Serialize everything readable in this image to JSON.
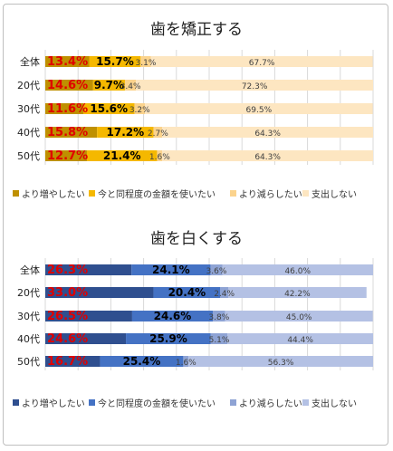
{
  "chart_data": [
    {
      "type": "bar",
      "orientation": "horizontal",
      "stacked": true,
      "title": "歯を矯正する",
      "categories": [
        "全体",
        "20代",
        "30代",
        "40代",
        "50代"
      ],
      "value_labels": {
        "series0": [
          "13.4%",
          "14.6%",
          "11.6%",
          "15.8%",
          "12.7%"
        ],
        "series1": [
          "15.7%",
          "9.7%",
          "15.6%",
          "17.2%",
          "21.4%"
        ],
        "series2": [
          "3.1%",
          "3.4%",
          "3.2%",
          "2.7%",
          "1.6%"
        ],
        "series3": [
          "67.7%",
          "72.3%",
          "69.5%",
          "64.3%",
          "64.3%"
        ]
      },
      "series": [
        {
          "name": "より増やしたい",
          "values": [
            13.4,
            14.6,
            11.6,
            15.8,
            12.7
          ],
          "color": "#bf9000"
        },
        {
          "name": "今と同程度の金額を使いたい",
          "values": [
            15.7,
            9.7,
            15.6,
            17.2,
            21.4
          ],
          "color": "#f5b800"
        },
        {
          "name": "より減らしたい",
          "values": [
            3.1,
            3.4,
            3.2,
            2.7,
            1.6
          ],
          "color": "#fbd38d"
        },
        {
          "name": "支出しない",
          "values": [
            67.7,
            72.3,
            69.5,
            64.3,
            64.3
          ],
          "color": "#fde6c1"
        }
      ],
      "xlim": [
        0,
        100
      ],
      "grid": true,
      "legend_position": "bottom"
    },
    {
      "type": "bar",
      "orientation": "horizontal",
      "stacked": true,
      "title": "歯を白くする",
      "categories": [
        "全体",
        "20代",
        "30代",
        "40代",
        "50代"
      ],
      "value_labels": {
        "series0": [
          "26.3%",
          "33.0%",
          "26.5%",
          "24.6%",
          "16.7%"
        ],
        "series1": [
          "24.1%",
          "20.4%",
          "24.6%",
          "25.9%",
          "25.4%"
        ],
        "series2": [
          "3.6%",
          "2.4%",
          "3.8%",
          "5.1%",
          "1.6%"
        ],
        "series3": [
          "46.0%",
          "42.2%",
          "45.0%",
          "44.4%",
          "56.3%"
        ]
      },
      "series": [
        {
          "name": "より増やしたい",
          "values": [
            26.3,
            33.0,
            26.5,
            24.6,
            16.7
          ],
          "color": "#2f4f8f"
        },
        {
          "name": "今と同程度の金額を使いたい",
          "values": [
            24.1,
            20.4,
            24.6,
            25.9,
            25.4
          ],
          "color": "#4472c4"
        },
        {
          "name": "より減らしたい",
          "values": [
            3.6,
            2.4,
            3.8,
            5.1,
            1.6
          ],
          "color": "#8ea3d4"
        },
        {
          "name": "支出しない",
          "values": [
            46.0,
            42.2,
            45.0,
            44.4,
            56.3
          ],
          "color": "#b4c1e4"
        }
      ],
      "xlim": [
        0,
        100
      ],
      "grid": true,
      "legend_position": "bottom"
    }
  ],
  "label_colors": [
    "#e00000",
    "#000000",
    "#404040",
    "#404040"
  ],
  "gridline_color": "#d9d9d9"
}
